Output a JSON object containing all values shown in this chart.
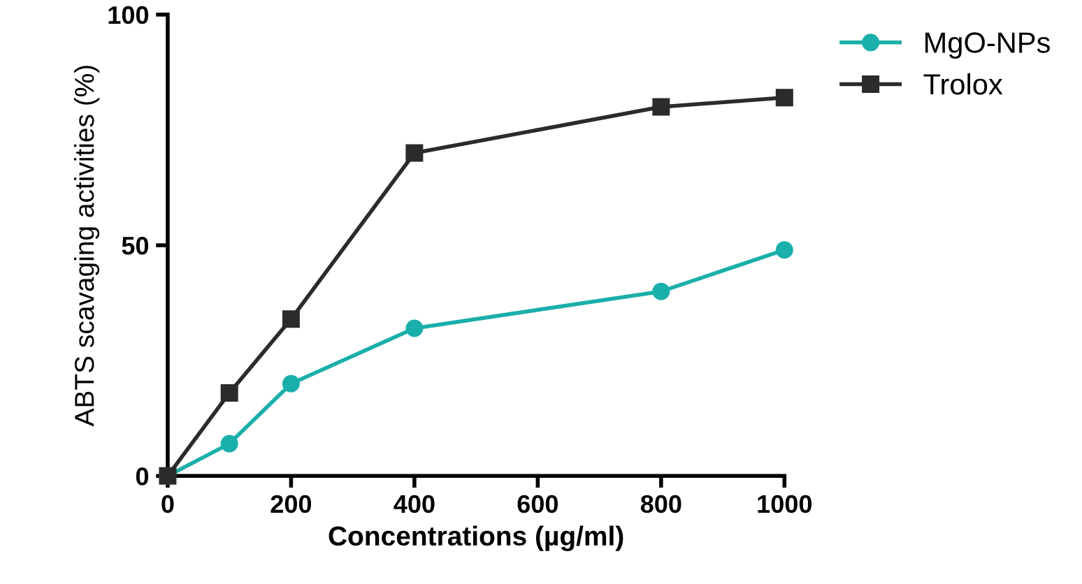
{
  "chart_data": {
    "type": "line",
    "xlabel": "Concentrations (µg/ml)",
    "ylabel": "ABTS scavaging activities (%)",
    "x": [
      0,
      100,
      200,
      400,
      800,
      1000
    ],
    "series": [
      {
        "name": "MgO-NPs",
        "color": "#1aafaa",
        "marker": "circle",
        "values": [
          0,
          7,
          20,
          32,
          40,
          49
        ]
      },
      {
        "name": "Trolox",
        "color": "#2b2b2b",
        "marker": "square",
        "values": [
          0,
          18,
          34,
          70,
          80,
          82
        ]
      }
    ],
    "xlim": [
      0,
      1000
    ],
    "xticks": [
      0,
      200,
      400,
      600,
      800,
      1000
    ],
    "ylim": [
      0,
      100
    ],
    "yticks": [
      0,
      50,
      100
    ],
    "grid": false,
    "legend": "top right",
    "line_style": "solid"
  }
}
